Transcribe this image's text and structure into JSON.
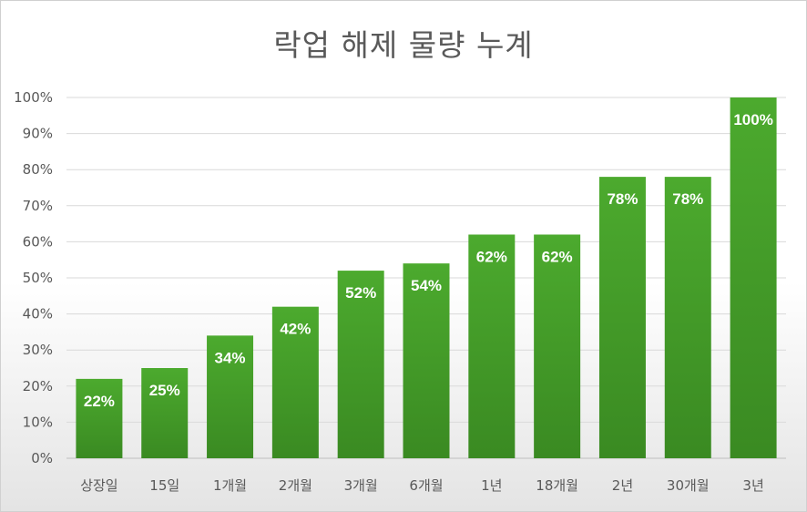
{
  "chart_data": {
    "type": "bar",
    "title": "락업 해제 물량 누계",
    "xlabel": "",
    "ylabel": "",
    "ylim": [
      0,
      100
    ],
    "y_tick_labels": [
      "0%",
      "10%",
      "20%",
      "30%",
      "40%",
      "50%",
      "60%",
      "70%",
      "80%",
      "90%",
      "100%"
    ],
    "categories": [
      "상장일",
      "15일",
      "1개월",
      "2개월",
      "3개월",
      "6개월",
      "1년",
      "18개월",
      "2년",
      "30개월",
      "3년"
    ],
    "values": [
      22,
      25,
      34,
      42,
      52,
      54,
      62,
      62,
      78,
      78,
      100
    ],
    "data_labels": [
      "22%",
      "25%",
      "34%",
      "42%",
      "52%",
      "54%",
      "62%",
      "62%",
      "78%",
      "78%",
      "100%"
    ],
    "grid": true,
    "legend": "none",
    "bar_color": "#4ca42e"
  }
}
